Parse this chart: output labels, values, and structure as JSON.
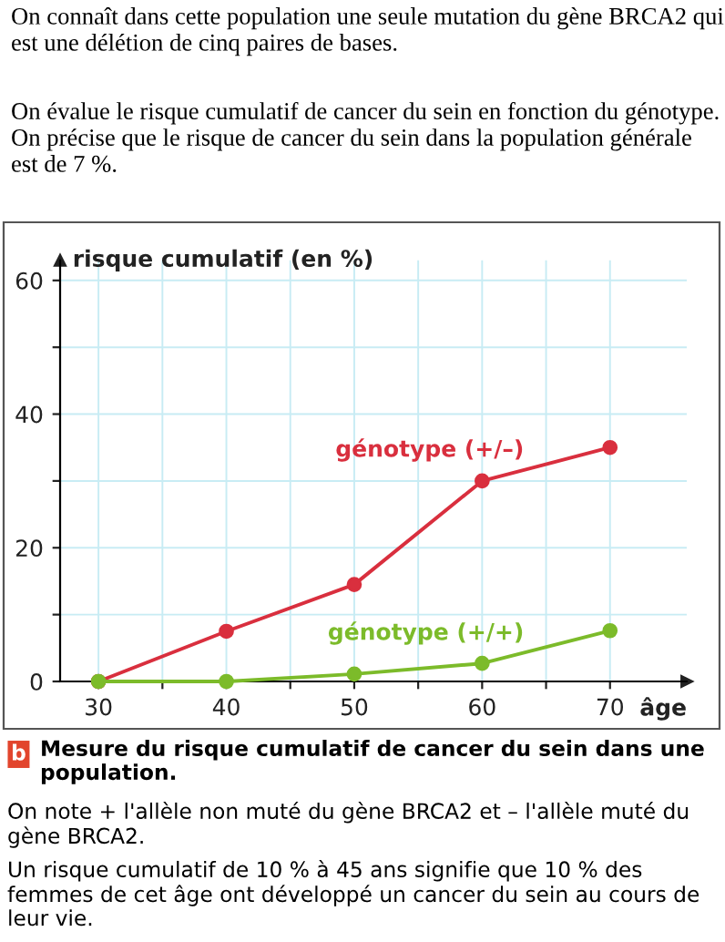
{
  "chart_data": {
    "type": "line",
    "title": "Mesure du risque cumulatif de cancer du sein dans une population.",
    "xlabel": "âge",
    "ylabel": "risque cumulatif (en %)",
    "x": [
      30,
      40,
      50,
      60,
      70
    ],
    "series": [
      {
        "name": "génotype (+/–)",
        "color": "#d92f3e",
        "values": [
          0,
          7.5,
          14.5,
          30,
          35
        ]
      },
      {
        "name": "génotype (+/+)",
        "color": "#7cbb2a",
        "values": [
          0,
          0,
          1.1,
          2.7,
          7.6
        ]
      }
    ],
    "xlim": [
      27,
      76
    ],
    "ylim": [
      0,
      63
    ],
    "xticks": [
      30,
      {
        "value": 35,
        "label": null
      },
      40,
      {
        "value": 45,
        "label": null
      },
      50,
      {
        "value": 55,
        "label": null
      },
      60,
      {
        "value": 65,
        "label": null
      },
      70
    ],
    "yticks": [
      0,
      {
        "value": 10,
        "label": null
      },
      20,
      {
        "value": 30,
        "label": null
      },
      40,
      {
        "value": 50,
        "label": null
      },
      60
    ],
    "grid": true,
    "marker": "circle",
    "line_style": "solid",
    "annotations": [
      "On connaît dans cette population une seule mutation du gène BRCA2 qui est une délétion de cinq paires de bases.",
      "On évalue le risque cumulatif de cancer du sein en fonction du génotype. On précise que le risque de cancer du sein dans la population générale est de 7 %.",
      "b",
      "On note + l'allèle non muté du gène BRCA2 et – l'allèle muté du gène BRCA2.",
      "Un risque cumulatif de 10 % à 45 ans signifie que 10 % des femmes de cet âge ont développé un cancer du sein au cours de leur vie."
    ]
  }
}
